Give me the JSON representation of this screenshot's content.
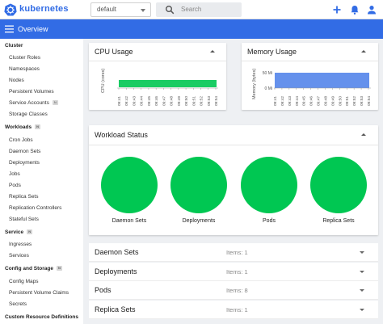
{
  "topbar": {
    "brand": "kubernetes",
    "namespace": "default",
    "search_placeholder": "Search",
    "icons": [
      "add-icon",
      "bell-icon",
      "account-icon"
    ]
  },
  "appbar": {
    "title": "Overview"
  },
  "sidebar": {
    "items": [
      {
        "label": "Cluster",
        "kind": "head"
      },
      {
        "label": "Cluster Roles",
        "kind": "link"
      },
      {
        "label": "Namespaces",
        "kind": "link"
      },
      {
        "label": "Nodes",
        "kind": "link"
      },
      {
        "label": "Persistent Volumes",
        "kind": "link"
      },
      {
        "label": "Service Accounts",
        "kind": "link",
        "badge": "N"
      },
      {
        "label": "Storage Classes",
        "kind": "link"
      },
      {
        "label": "Workloads",
        "kind": "head",
        "badge": "N"
      },
      {
        "label": "Cron Jobs",
        "kind": "link"
      },
      {
        "label": "Daemon Sets",
        "kind": "link"
      },
      {
        "label": "Deployments",
        "kind": "link"
      },
      {
        "label": "Jobs",
        "kind": "link"
      },
      {
        "label": "Pods",
        "kind": "link"
      },
      {
        "label": "Replica Sets",
        "kind": "link"
      },
      {
        "label": "Replication Controllers",
        "kind": "link"
      },
      {
        "label": "Stateful Sets",
        "kind": "link"
      },
      {
        "label": "Service",
        "kind": "head",
        "badge": "N"
      },
      {
        "label": "Ingresses",
        "kind": "link"
      },
      {
        "label": "Services",
        "kind": "link"
      },
      {
        "label": "Config and Storage",
        "kind": "head",
        "badge": "N"
      },
      {
        "label": "Config Maps",
        "kind": "link"
      },
      {
        "label": "Persistent Volume Claims",
        "kind": "link"
      },
      {
        "label": "Secrets",
        "kind": "link"
      },
      {
        "label": "Custom Resource Definitions",
        "kind": "head"
      }
    ]
  },
  "cpu": {
    "title": "CPU Usage",
    "ylabel": "CPU (cores)",
    "fill_color": "#00c752",
    "times": [
      "09:41",
      "09:42",
      "09:43",
      "09:44",
      "09:45",
      "09:46",
      "09:47",
      "09:48",
      "09:49",
      "09:50",
      "09:51",
      "09:52",
      "09:53",
      "09:54"
    ]
  },
  "memory": {
    "title": "Memory Usage",
    "ylabel": "Memory (bytes)",
    "fill_color": "#326ce5",
    "ticks": [
      "50 Mi",
      "0 Mi"
    ],
    "times": [
      "09:41",
      "09:42",
      "09:43",
      "09:44",
      "09:45",
      "09:46",
      "09:47",
      "09:48",
      "09:49",
      "09:50",
      "09:51",
      "09:52",
      "09:53",
      "09:54"
    ]
  },
  "workload_status": {
    "title": "Workload Status",
    "color": "#00c752",
    "items": [
      "Daemon Sets",
      "Deployments",
      "Pods",
      "Replica Sets"
    ]
  },
  "resources": [
    {
      "name": "Daemon Sets",
      "items": "Items: 1"
    },
    {
      "name": "Deployments",
      "items": "Items: 1"
    },
    {
      "name": "Pods",
      "items": "Items: 8"
    },
    {
      "name": "Replica Sets",
      "items": "Items: 1"
    }
  ]
}
